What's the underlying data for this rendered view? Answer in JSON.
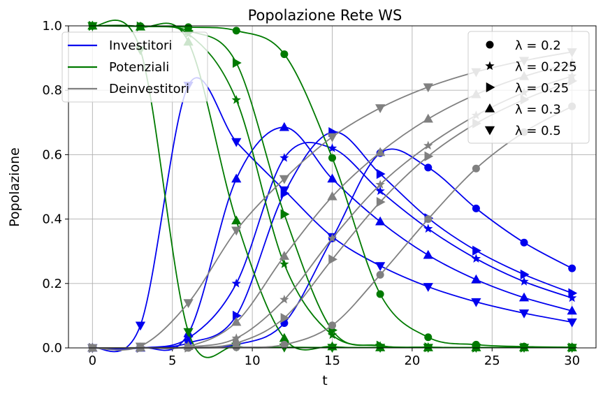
{
  "chart_data": {
    "type": "line",
    "title": "Popolazione Rete WS",
    "xlabel": "t",
    "ylabel": "Popolazione",
    "xlim": [
      -1.5,
      31.5
    ],
    "ylim": [
      0,
      1.0
    ],
    "xticks": [
      "0",
      "5",
      "10",
      "15",
      "20",
      "25",
      "30"
    ],
    "yticks": [
      "0.0",
      "0.2",
      "0.4",
      "0.6",
      "0.8",
      "1.0"
    ],
    "grid": true,
    "colors": {
      "Investitori": "#0000ee",
      "Potenziali": "#007a00",
      "Deinvestitori": "#808080"
    },
    "legend_lines": {
      "placement": "upper-left",
      "entries": [
        "Investitori",
        "Potenziali",
        "Deinvestitori"
      ]
    },
    "legend_markers": {
      "placement": "upper-right",
      "entries": [
        {
          "marker": "circle",
          "label": "λ = 0.2"
        },
        {
          "marker": "star",
          "label": "λ = 0.225"
        },
        {
          "marker": "triangle-right",
          "label": "λ = 0.25"
        },
        {
          "marker": "triangle-up",
          "label": "λ = 0.3"
        },
        {
          "marker": "triangle-down",
          "label": "λ = 0.5"
        }
      ]
    },
    "series": [
      {
        "group": "Investitori",
        "lambda": "0.2",
        "marker": "circle",
        "x": [
          0,
          3,
          6,
          9,
          12,
          15,
          18,
          21,
          24,
          27,
          30
        ],
        "y": [
          0,
          0,
          0.002,
          0.01,
          0.077,
          0.34,
          0.605,
          0.56,
          0.433,
          0.327,
          0.247
        ]
      },
      {
        "group": "Investitori",
        "lambda": "0.225",
        "marker": "star",
        "x": [
          0,
          3,
          6,
          9,
          12,
          15,
          18,
          21,
          24,
          27,
          30
        ],
        "y": [
          0,
          0,
          0.03,
          0.2,
          0.59,
          0.62,
          0.487,
          0.37,
          0.277,
          0.206,
          0.155
        ]
      },
      {
        "group": "Investitori",
        "lambda": "0.25",
        "marker": "triangle-right",
        "x": [
          0,
          3,
          6,
          9,
          12,
          15,
          18,
          21,
          24,
          27,
          30
        ],
        "y": [
          0,
          0,
          0.015,
          0.1,
          0.48,
          0.67,
          0.54,
          0.403,
          0.302,
          0.228,
          0.17
        ]
      },
      {
        "group": "Investitori",
        "lambda": "0.3",
        "marker": "triangle-up",
        "x": [
          0,
          3,
          6,
          9,
          12,
          15,
          18,
          21,
          24,
          27,
          30
        ],
        "y": [
          0,
          0,
          0.045,
          0.525,
          0.685,
          0.525,
          0.392,
          0.288,
          0.212,
          0.156,
          0.115
        ]
      },
      {
        "group": "Investitori",
        "lambda": "0.5",
        "marker": "triangle-down",
        "x": [
          0,
          3,
          6,
          9,
          12,
          15,
          18,
          21,
          24,
          27,
          30
        ],
        "y": [
          0,
          0.07,
          0.815,
          0.64,
          0.49,
          0.345,
          0.255,
          0.19,
          0.143,
          0.108,
          0.08
        ]
      },
      {
        "group": "Potenziali",
        "lambda": "0.2",
        "marker": "circle",
        "x": [
          0,
          3,
          6,
          9,
          12,
          15,
          18,
          21,
          24,
          27,
          30
        ],
        "y": [
          1.0,
          0.999,
          0.996,
          0.985,
          0.912,
          0.59,
          0.167,
          0.033,
          0.01,
          0.004,
          0.002
        ]
      },
      {
        "group": "Potenziali",
        "lambda": "0.225",
        "marker": "star",
        "x": [
          0,
          3,
          6,
          9,
          12,
          15,
          18,
          21,
          24,
          27,
          30
        ],
        "y": [
          1.0,
          0.998,
          0.975,
          0.77,
          0.26,
          0.04,
          0.006,
          0.002,
          0.001,
          0.001,
          0.001
        ]
      },
      {
        "group": "Potenziali",
        "lambda": "0.25",
        "marker": "triangle-right",
        "x": [
          0,
          3,
          6,
          9,
          12,
          15,
          18,
          21,
          24,
          27,
          30
        ],
        "y": [
          1.0,
          0.998,
          0.985,
          0.885,
          0.415,
          0.055,
          0.007,
          0.002,
          0.001,
          0.001,
          0.001
        ]
      },
      {
        "group": "Potenziali",
        "lambda": "0.3",
        "marker": "triangle-up",
        "x": [
          0,
          3,
          6,
          9,
          12,
          15,
          18,
          21,
          24,
          27,
          30
        ],
        "y": [
          1.0,
          0.997,
          0.95,
          0.395,
          0.03,
          0.004,
          0.001,
          0.001,
          0.001,
          0.001,
          0.001
        ]
      },
      {
        "group": "Potenziali",
        "lambda": "0.5",
        "marker": "triangle-down",
        "x": [
          0,
          3,
          6,
          9,
          12,
          15,
          18,
          21,
          24,
          27,
          30
        ],
        "y": [
          1.0,
          0.925,
          0.05,
          0.005,
          0.002,
          0.001,
          0.001,
          0.001,
          0.001,
          0.001,
          0.001
        ]
      },
      {
        "group": "Deinvestitori",
        "lambda": "0.2",
        "marker": "circle",
        "x": [
          0,
          3,
          6,
          9,
          12,
          15,
          18,
          21,
          24,
          27,
          30
        ],
        "y": [
          0,
          0,
          0,
          0.002,
          0.01,
          0.07,
          0.227,
          0.4,
          0.557,
          0.67,
          0.75
        ]
      },
      {
        "group": "Deinvestitori",
        "lambda": "0.225",
        "marker": "star",
        "x": [
          0,
          3,
          6,
          9,
          12,
          15,
          18,
          21,
          24,
          27,
          30
        ],
        "y": [
          0,
          0,
          0.003,
          0.03,
          0.15,
          0.34,
          0.507,
          0.628,
          0.722,
          0.793,
          0.844
        ]
      },
      {
        "group": "Deinvestitori",
        "lambda": "0.25",
        "marker": "triangle-right",
        "x": [
          0,
          3,
          6,
          9,
          12,
          15,
          18,
          21,
          24,
          27,
          30
        ],
        "y": [
          0,
          0,
          0.001,
          0.015,
          0.093,
          0.275,
          0.453,
          0.595,
          0.697,
          0.771,
          0.829
        ]
      },
      {
        "group": "Deinvestitori",
        "lambda": "0.3",
        "marker": "triangle-up",
        "x": [
          0,
          3,
          6,
          9,
          12,
          15,
          18,
          21,
          24,
          27,
          30
        ],
        "y": [
          0,
          0.001,
          0.005,
          0.08,
          0.285,
          0.47,
          0.607,
          0.711,
          0.787,
          0.843,
          0.884
        ]
      },
      {
        "group": "Deinvestitori",
        "lambda": "0.5",
        "marker": "triangle-down",
        "x": [
          0,
          3,
          6,
          9,
          12,
          15,
          18,
          21,
          24,
          27,
          30
        ],
        "y": [
          0,
          0.005,
          0.14,
          0.365,
          0.525,
          0.655,
          0.745,
          0.81,
          0.857,
          0.892,
          0.919
        ]
      }
    ]
  }
}
